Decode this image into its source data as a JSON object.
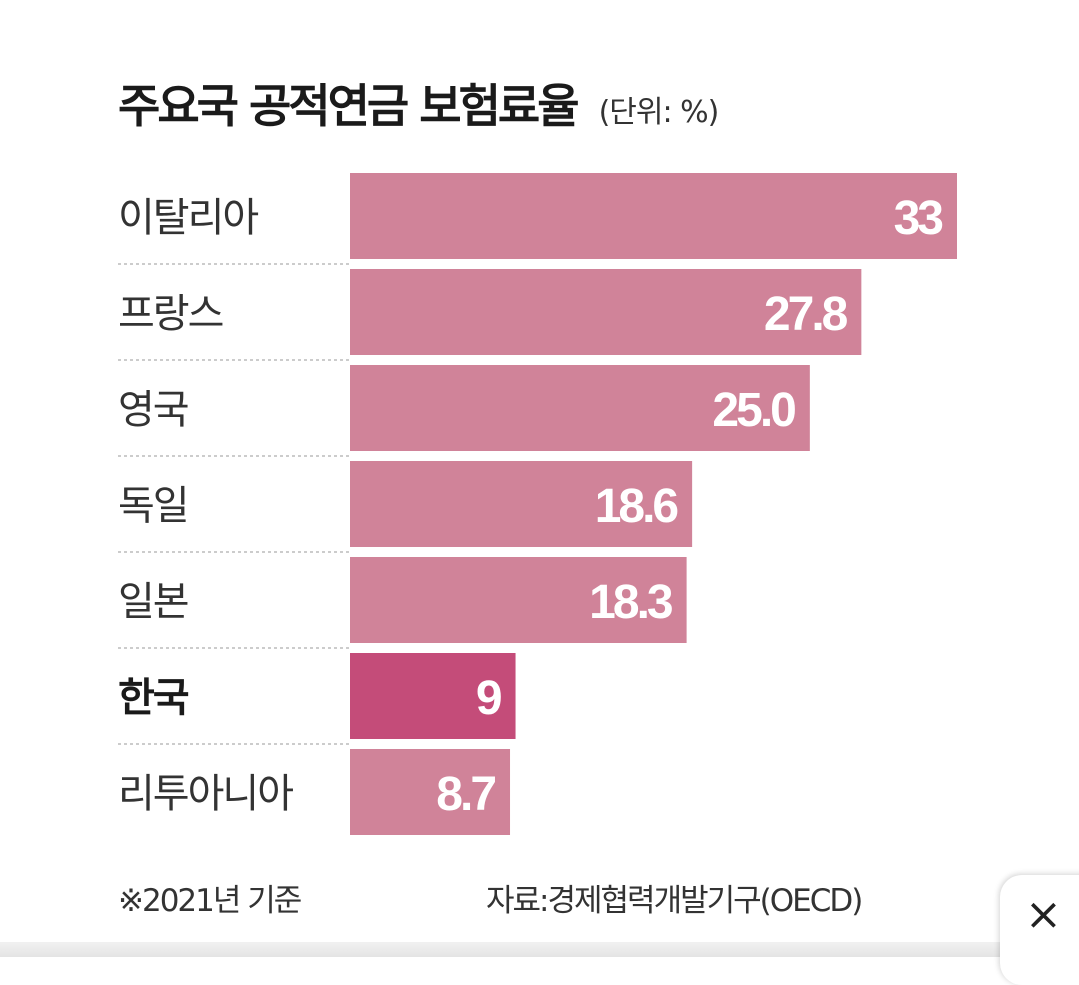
{
  "title": "주요국 공적연금 보험료율",
  "unit": "(단위: %)",
  "footnote": "※2021년 기준",
  "source": "자료:경제협력개발기구(OECD)",
  "close_icon": "×",
  "colors": {
    "bar": "#d08399",
    "highlight_bar": "#c44c79",
    "bar_label": "#ffffff",
    "category_text": "#333333",
    "divider": "#bbbbbb"
  },
  "chart_data": {
    "type": "bar",
    "orientation": "horizontal",
    "title": "주요국 공적연금 보험료율",
    "unit": "(단위: %)",
    "categories": [
      "이탈리아",
      "프랑스",
      "영국",
      "독일",
      "일본",
      "한국",
      "리투아니아"
    ],
    "values": [
      33,
      27.8,
      25.0,
      18.6,
      18.3,
      9,
      8.7
    ],
    "value_labels": [
      "33",
      "27.8",
      "25.0",
      "18.6",
      "18.3",
      "9",
      "8.7"
    ],
    "highlight": "한국",
    "xlim": [
      0,
      33
    ],
    "grid": false,
    "legend": "none"
  }
}
